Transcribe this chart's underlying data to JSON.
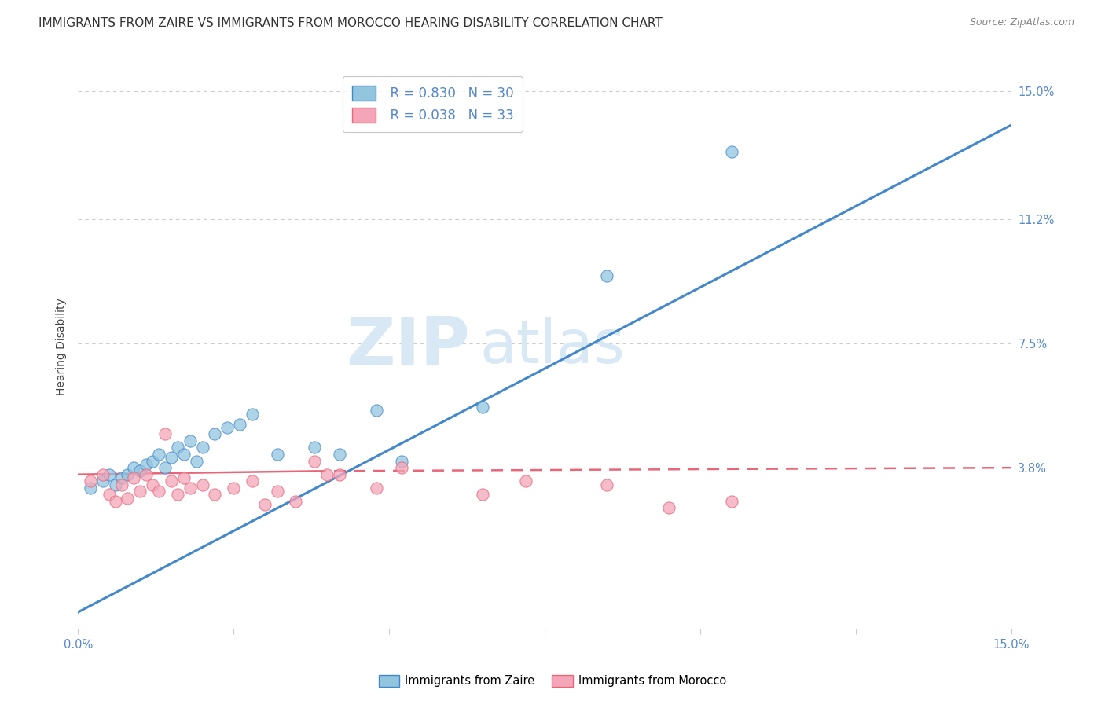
{
  "title": "IMMIGRANTS FROM ZAIRE VS IMMIGRANTS FROM MOROCCO HEARING DISABILITY CORRELATION CHART",
  "source": "Source: ZipAtlas.com",
  "ylabel": "Hearing Disability",
  "legend_zaire": "Immigrants from Zaire",
  "legend_morocco": "Immigrants from Morocco",
  "R_zaire": 0.83,
  "N_zaire": 30,
  "R_morocco": 0.038,
  "N_morocco": 33,
  "color_zaire": "#92c5de",
  "color_morocco": "#f4a6b8",
  "color_line_zaire": "#4488cc",
  "color_line_morocco": "#e8667a",
  "color_axis_labels": "#5588cc",
  "color_grid": "#cccccc",
  "color_watermark": "#d8e8f5",
  "xmin": 0.0,
  "xmax": 0.15,
  "ymin": -0.01,
  "ymax": 0.158,
  "yticks": [
    0.038,
    0.075,
    0.112,
    0.15
  ],
  "ytick_labels": [
    "3.8%",
    "7.5%",
    "11.2%",
    "15.0%"
  ],
  "xticks": [
    0.0,
    0.025,
    0.05,
    0.075,
    0.1,
    0.125,
    0.15
  ],
  "xtick_labels": [
    "0.0%",
    "",
    "",
    "",
    "",
    "",
    "15.0%"
  ],
  "zaire_x": [
    0.002,
    0.004,
    0.005,
    0.006,
    0.007,
    0.008,
    0.009,
    0.01,
    0.011,
    0.012,
    0.013,
    0.014,
    0.015,
    0.016,
    0.017,
    0.018,
    0.019,
    0.02,
    0.022,
    0.024,
    0.026,
    0.028,
    0.032,
    0.038,
    0.042,
    0.048,
    0.052,
    0.065,
    0.085,
    0.105
  ],
  "zaire_y": [
    0.032,
    0.034,
    0.036,
    0.033,
    0.035,
    0.036,
    0.038,
    0.037,
    0.039,
    0.04,
    0.042,
    0.038,
    0.041,
    0.044,
    0.042,
    0.046,
    0.04,
    0.044,
    0.048,
    0.05,
    0.051,
    0.054,
    0.042,
    0.044,
    0.042,
    0.055,
    0.04,
    0.056,
    0.095,
    0.132
  ],
  "morocco_x": [
    0.002,
    0.004,
    0.005,
    0.006,
    0.007,
    0.008,
    0.009,
    0.01,
    0.011,
    0.012,
    0.013,
    0.014,
    0.015,
    0.016,
    0.017,
    0.018,
    0.02,
    0.022,
    0.025,
    0.028,
    0.03,
    0.032,
    0.035,
    0.038,
    0.04,
    0.042,
    0.048,
    0.052,
    0.065,
    0.072,
    0.085,
    0.095,
    0.105
  ],
  "morocco_y": [
    0.034,
    0.036,
    0.03,
    0.028,
    0.033,
    0.029,
    0.035,
    0.031,
    0.036,
    0.033,
    0.031,
    0.048,
    0.034,
    0.03,
    0.035,
    0.032,
    0.033,
    0.03,
    0.032,
    0.034,
    0.027,
    0.031,
    0.028,
    0.04,
    0.036,
    0.036,
    0.032,
    0.038,
    0.03,
    0.034,
    0.033,
    0.026,
    0.028
  ],
  "bg_color": "#ffffff",
  "title_fontsize": 11,
  "axis_label_fontsize": 10,
  "tick_fontsize": 10.5,
  "watermark_zip_size": 62,
  "watermark_atlas_size": 55
}
